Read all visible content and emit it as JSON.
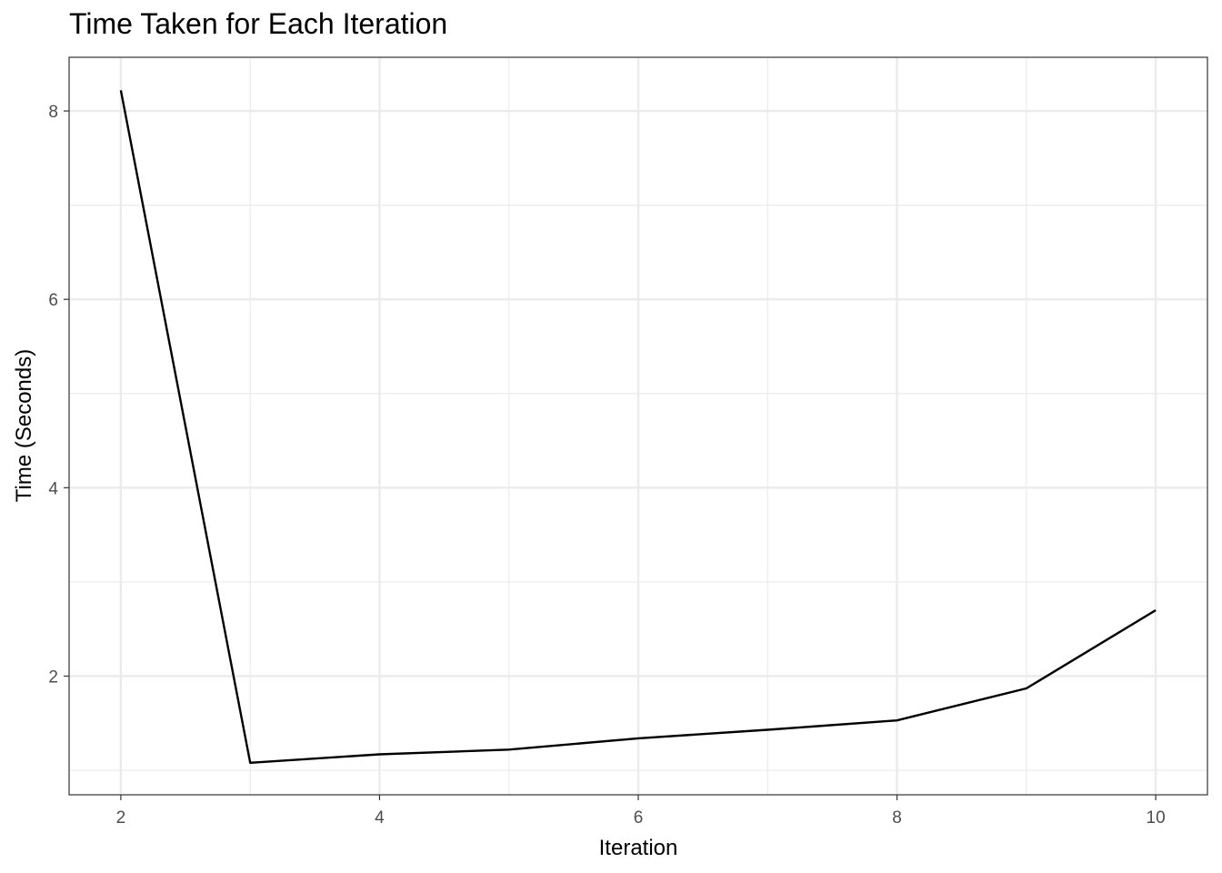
{
  "chart_data": {
    "type": "line",
    "title": "Time Taken for Each Iteration",
    "xlabel": "Iteration",
    "ylabel": "Time (Seconds)",
    "x": [
      2,
      3,
      4,
      5,
      6,
      7,
      8,
      9,
      10
    ],
    "series": [
      {
        "values": [
          8.22,
          1.08,
          1.17,
          1.22,
          1.34,
          1.43,
          1.53,
          1.87,
          2.7
        ]
      }
    ],
    "xlim": [
      1.6,
      10.4
    ],
    "ylim": [
      0.74,
      8.57
    ],
    "x_ticks": [
      2,
      4,
      6,
      8,
      10
    ],
    "x_minor_ticks": [
      3,
      5,
      7,
      9
    ],
    "y_ticks": [
      2,
      4,
      6,
      8
    ],
    "y_minor_ticks": [
      1,
      3,
      5,
      7
    ],
    "grid": true,
    "line_color": "#000000",
    "grid_color": "#ebebeb",
    "panel_border_color": "#333333"
  }
}
